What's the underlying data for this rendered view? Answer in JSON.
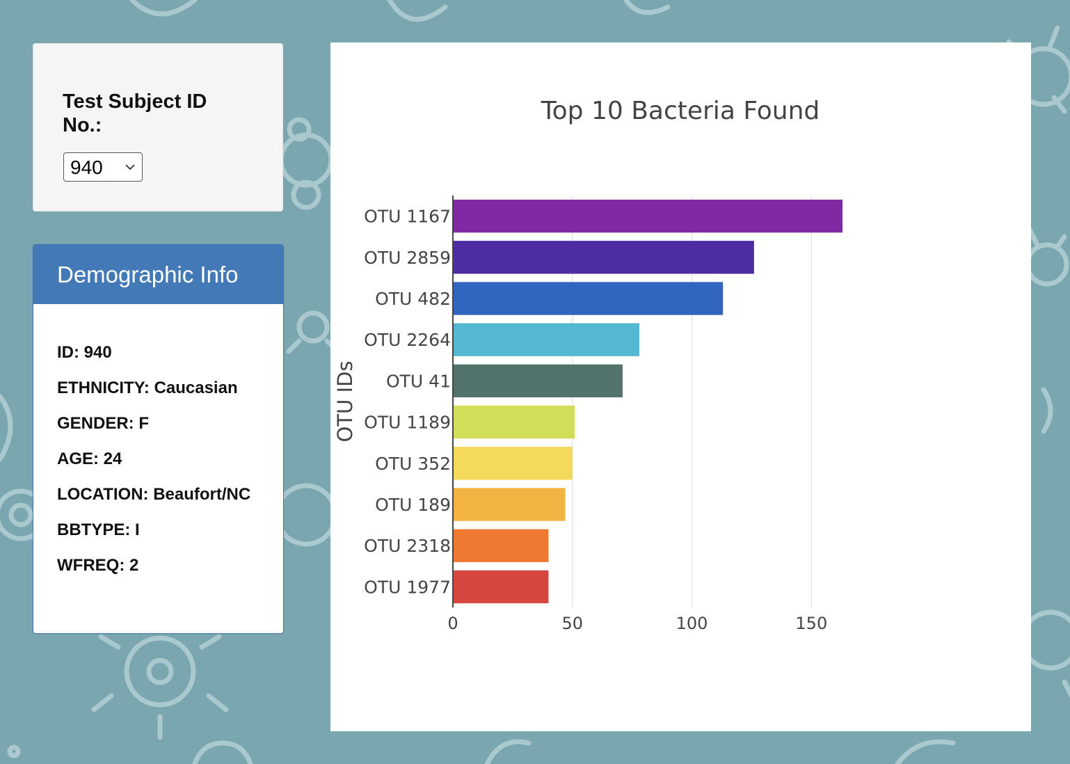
{
  "selector": {
    "label": "Test Subject ID No.:",
    "selected_value": "940"
  },
  "demographics": {
    "title": "Demographic Info",
    "items": [
      "ID: 940",
      "ETHNICITY: Caucasian",
      "GENDER: F",
      "AGE: 24",
      "LOCATION: Beaufort/NC",
      "BBTYPE: I",
      "WFREQ: 2"
    ]
  },
  "colors": {
    "page_background": "#7aa7af",
    "demo_header": "#4479b8"
  },
  "chart_data": {
    "type": "bar",
    "orientation": "horizontal",
    "title": "Top 10 Bacteria Found",
    "xlabel": "",
    "ylabel": "OTU IDs",
    "categories": [
      "OTU 1167",
      "OTU 2859",
      "OTU 482",
      "OTU 2264",
      "OTU 41",
      "OTU 1189",
      "OTU 352",
      "OTU 189",
      "OTU 2318",
      "OTU 1977"
    ],
    "values": [
      163,
      126,
      113,
      78,
      71,
      51,
      50,
      47,
      40,
      40
    ],
    "bar_colors": [
      "#8129a3",
      "#4d2ca4",
      "#3265bd",
      "#55b8d3",
      "#52736c",
      "#d2dd5a",
      "#f5d95a",
      "#f3b342",
      "#ee7a32",
      "#d5473f"
    ],
    "x_ticks": [
      "0",
      "50",
      "100",
      "150"
    ],
    "xlim": [
      0,
      186
    ],
    "grid": true,
    "legend": "none"
  }
}
